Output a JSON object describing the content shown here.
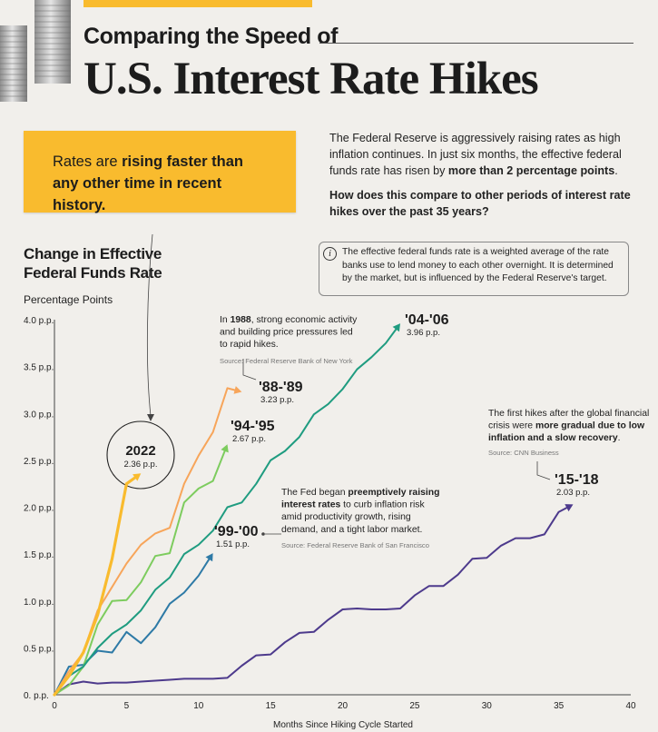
{
  "header": {
    "supertitle": "Comparing the Speed of",
    "title": "U.S. Interest Rate Hikes"
  },
  "callout": {
    "text_1": "Rates are ",
    "text_bold": "rising faster than any other time in recent history",
    "text_2": "."
  },
  "intro": {
    "text_1": "The Federal Reserve is aggressively raising rates as high inflation continues. In just six months, the effective federal funds rate has risen by ",
    "text_bold": "more than 2 percentage points",
    "text_2": ".",
    "question": "How does this compare to other periods of interest rate hikes over the past 35 years?"
  },
  "info": {
    "icon": "info-icon",
    "icon_glyph": "i",
    "text": "The effective federal funds rate is a weighted average of the rate banks use to lend money to each other overnight. It is determined by the market, but is influenced by the Federal Reserve's target."
  },
  "annotations": {
    "a1988": {
      "lines": [
        "In 1988, strong economic activity",
        "and building price pressures led",
        "to rapid hikes."
      ],
      "source": "Source: Federal Reserve Bank of New York"
    },
    "a1999": {
      "lines": [
        "The Fed began preemptively raising",
        "interest rates to curb inflation risk",
        "amid productivity growth, rising",
        "demand, and a tight labor market."
      ],
      "source": "Source: Federal Reserve Bank of San Francisco"
    },
    "a2015": {
      "lines": [
        "The first hikes after the global financial",
        "crisis were more gradual due to low",
        "inflation and a slow recovery."
      ],
      "source": "Source: CNN Business"
    }
  },
  "colors": {
    "accent": "#f9bb2e",
    "c2022": "#f9bb2e",
    "c1988": "#f7a55a",
    "c1994": "#7dcc5e",
    "c2004": "#1f9c80",
    "c1999": "#2e7aa6",
    "c2015": "#4d3a8c"
  },
  "chart_data": {
    "type": "line",
    "title": "Change in Effective Federal Funds Rate",
    "subtitle": "Percentage Points",
    "xlabel": "Months Since Hiking Cycle Started",
    "ylabel": "",
    "xlim": [
      0,
      40
    ],
    "ylim": [
      0,
      4.0
    ],
    "x_ticks": [
      0,
      5,
      10,
      15,
      20,
      25,
      30,
      35,
      40
    ],
    "y_ticks": [
      0,
      0.5,
      1.0,
      1.5,
      2.0,
      2.5,
      3.0,
      3.5,
      4.0
    ],
    "y_tick_labels": [
      "0. p.p.",
      "0.5 p.p.",
      "1.0 p.p.",
      "1.5 p.p.",
      "2.0 p.p.",
      "2.5 p.p.",
      "3.0 p.p.",
      "3.5 p.p.",
      "4.0 p.p."
    ],
    "grid": false,
    "series": [
      {
        "name": "2022",
        "end_label": "2.36 p.p.",
        "x": [
          0,
          1,
          2,
          3,
          4,
          5,
          6
        ],
        "y": [
          0,
          0.2,
          0.45,
          0.85,
          1.45,
          2.25,
          2.36
        ]
      },
      {
        "name": "'88-'89",
        "end_label": "3.23 p.p.",
        "x": [
          0,
          1,
          2,
          3,
          4,
          5,
          6,
          7,
          8,
          9,
          10,
          11,
          12,
          13
        ],
        "y": [
          0,
          0.25,
          0.45,
          0.9,
          1.15,
          1.4,
          1.6,
          1.72,
          1.78,
          2.25,
          2.55,
          2.8,
          3.27,
          3.23
        ]
      },
      {
        "name": "'94-'95",
        "end_label": "2.67 p.p.",
        "x": [
          0,
          1,
          2,
          3,
          4,
          5,
          6,
          7,
          8,
          9,
          10,
          11,
          12
        ],
        "y": [
          0,
          0.1,
          0.3,
          0.75,
          1.0,
          1.01,
          1.2,
          1.48,
          1.51,
          2.05,
          2.2,
          2.28,
          2.67
        ]
      },
      {
        "name": "'04-'06",
        "end_label": "3.96 p.p.",
        "x": [
          0,
          1,
          2,
          3,
          4,
          5,
          6,
          7,
          8,
          9,
          10,
          11,
          12,
          13,
          14,
          15,
          16,
          17,
          18,
          19,
          20,
          21,
          22,
          23,
          24
        ],
        "y": [
          0,
          0.2,
          0.3,
          0.5,
          0.65,
          0.75,
          0.9,
          1.12,
          1.25,
          1.5,
          1.6,
          1.75,
          2.0,
          2.05,
          2.25,
          2.5,
          2.6,
          2.75,
          2.99,
          3.1,
          3.26,
          3.47,
          3.6,
          3.75,
          3.96
        ]
      },
      {
        "name": "'99-'00",
        "end_label": "1.51 p.p.",
        "x": [
          0,
          1,
          2,
          3,
          4,
          5,
          6,
          7,
          8,
          9,
          10,
          11
        ],
        "y": [
          0,
          0.3,
          0.32,
          0.47,
          0.45,
          0.67,
          0.55,
          0.72,
          0.97,
          1.09,
          1.27,
          1.51
        ]
      },
      {
        "name": "'15-'18",
        "end_label": "2.03 p.p.",
        "x": [
          0,
          1,
          2,
          3,
          4,
          5,
          6,
          7,
          8,
          9,
          10,
          11,
          12,
          13,
          14,
          15,
          16,
          17,
          18,
          19,
          20,
          21,
          22,
          23,
          24,
          25,
          26,
          27,
          28,
          29,
          30,
          31,
          32,
          33,
          34,
          35,
          36
        ],
        "y": [
          0,
          0.11,
          0.14,
          0.12,
          0.13,
          0.13,
          0.14,
          0.15,
          0.16,
          0.17,
          0.17,
          0.17,
          0.18,
          0.31,
          0.42,
          0.43,
          0.56,
          0.66,
          0.67,
          0.8,
          0.91,
          0.92,
          0.91,
          0.91,
          0.92,
          1.06,
          1.16,
          1.16,
          1.28,
          1.45,
          1.46,
          1.59,
          1.67,
          1.67,
          1.71,
          1.95,
          2.03
        ]
      }
    ]
  }
}
